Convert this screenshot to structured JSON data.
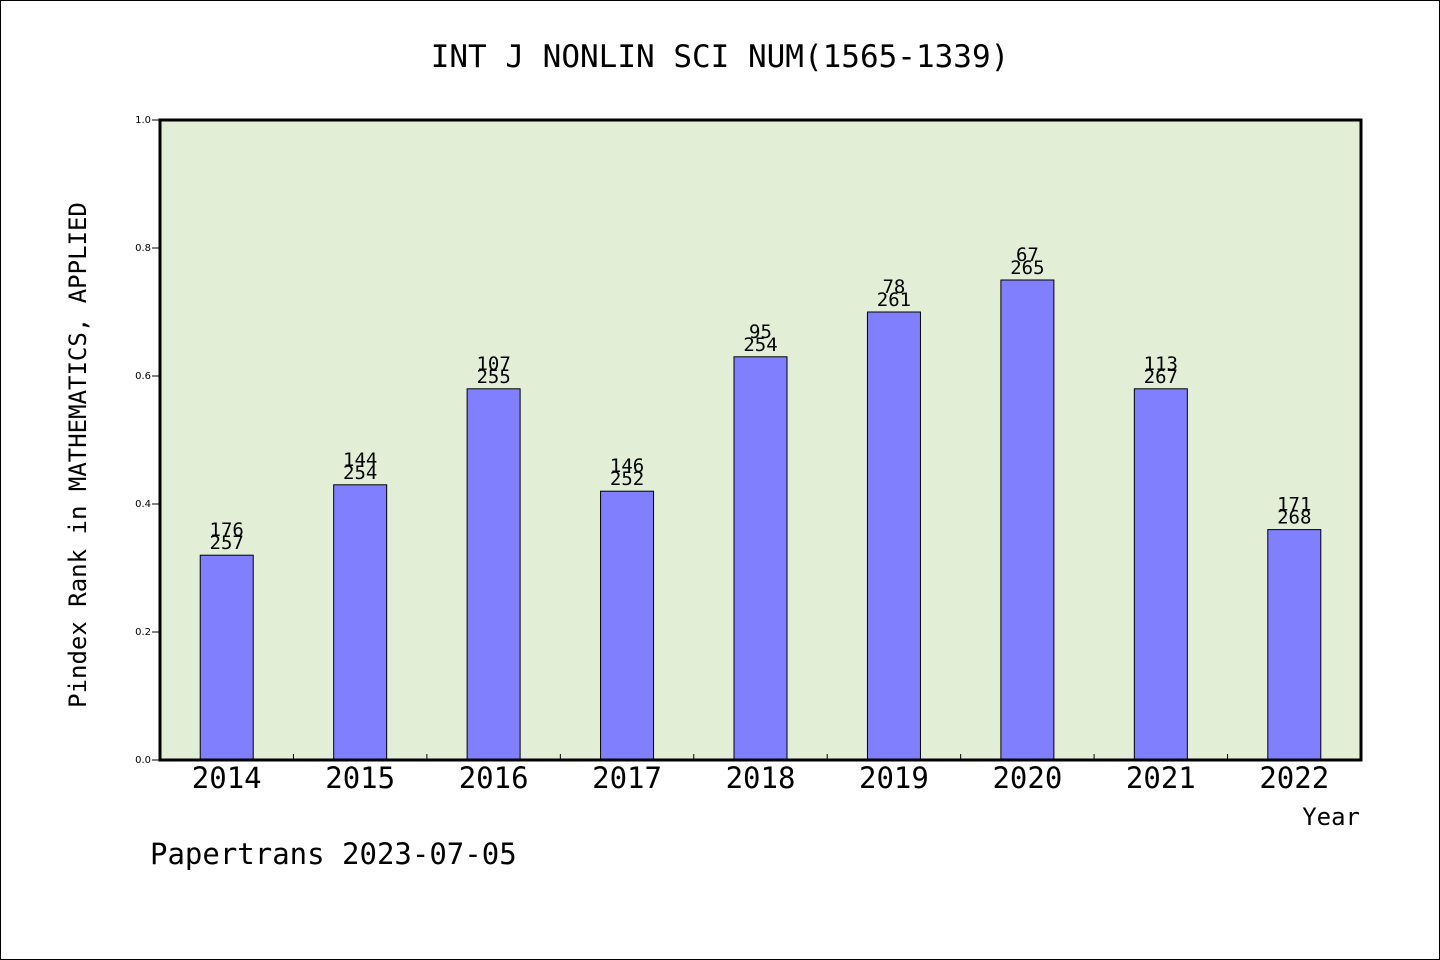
{
  "chart_data": {
    "type": "bar",
    "title": "INT J NONLIN SCI NUM(1565-1339)",
    "xlabel": "Year",
    "ylabel": "Pindex Rank in MATHEMATICS, APPLIED",
    "ylim": [
      0,
      1.0
    ],
    "yticks": [
      "0.0",
      "0.2",
      "0.4",
      "0.6",
      "0.8",
      "1.0"
    ],
    "categories": [
      "2014",
      "2015",
      "2016",
      "2017",
      "2018",
      "2019",
      "2020",
      "2021",
      "2022"
    ],
    "values": [
      0.32,
      0.43,
      0.58,
      0.42,
      0.63,
      0.7,
      0.75,
      0.58,
      0.36
    ],
    "label_top": [
      "176",
      "144",
      "107",
      "146",
      "95",
      "78",
      "67",
      "113",
      "171"
    ],
    "label_bottom": [
      "257",
      "254",
      "255",
      "252",
      "254",
      "261",
      "265",
      "267",
      "268"
    ],
    "grid": false,
    "legend": "none"
  },
  "footer": "Papertrans 2023-07-05",
  "colors": {
    "plot_background": "#e2efd6",
    "bar_fill": "#8080ff",
    "bar_stroke": "#000000"
  }
}
